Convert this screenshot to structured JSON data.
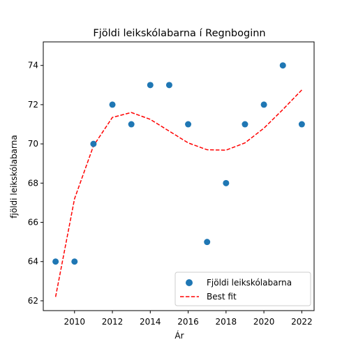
{
  "chart_data": {
    "type": "scatter",
    "title": "Fjöldi leikskólabarna í Regnboginn",
    "xlabel": "Ár",
    "ylabel": "fjöldi leikskólabarna",
    "xlim": [
      2008.35,
      2022.65
    ],
    "ylim": [
      61.5,
      75.2
    ],
    "x_ticks": [
      2010,
      2012,
      2014,
      2016,
      2018,
      2020,
      2022
    ],
    "y_ticks": [
      62,
      64,
      66,
      68,
      70,
      72,
      74
    ],
    "grid": false,
    "legend_position": "lower-right",
    "series": [
      {
        "name": "Fjöldi leikskólabarna",
        "kind": "scatter",
        "color": "#1f77b4",
        "x": [
          2009,
          2010,
          2011,
          2012,
          2013,
          2014,
          2015,
          2016,
          2017,
          2018,
          2019,
          2020,
          2021,
          2022
        ],
        "y": [
          64,
          64,
          70,
          72,
          71,
          73,
          73,
          71,
          65,
          68,
          71,
          72,
          74,
          71
        ]
      },
      {
        "name": "Best fit",
        "kind": "line",
        "style": "dashed",
        "color": "#ff0000",
        "x": [
          2009,
          2010,
          2011,
          2012,
          2013,
          2014,
          2015,
          2016,
          2017,
          2018,
          2019,
          2020,
          2021,
          2022
        ],
        "y": [
          62.2,
          67.2,
          69.9,
          71.35,
          71.6,
          71.25,
          70.65,
          70.05,
          69.7,
          69.68,
          70.05,
          70.8,
          71.75,
          72.75
        ]
      }
    ]
  }
}
